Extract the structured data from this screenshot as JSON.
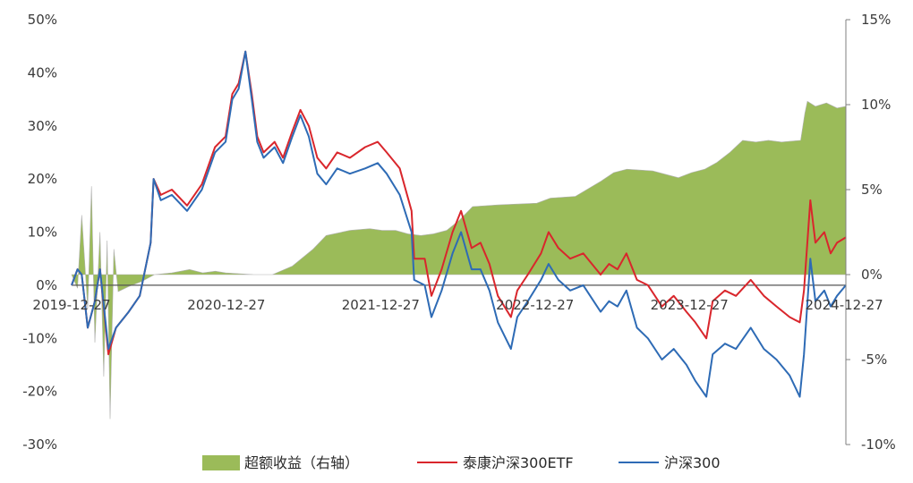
{
  "chart_data": {
    "type": "line",
    "x_type": "date",
    "x_range": [
      "2019-12-27",
      "2024-12-31"
    ],
    "x_tick_labels": [
      "2019-12-27",
      "2020-12-27",
      "2021-12-27",
      "2022-12-27",
      "2023-12-27",
      "2024-12-27"
    ],
    "y_left": {
      "ticks": [
        "50%",
        "40%",
        "30%",
        "20%",
        "10%",
        "0%",
        "-10%",
        "-20%",
        "-30%"
      ],
      "range": [
        -30,
        50
      ],
      "unit": "%"
    },
    "y_right": {
      "ticks": [
        "15%",
        "10%",
        "5%",
        "0%",
        "-5%",
        "-10%"
      ],
      "range": [
        -10,
        15
      ],
      "unit": "%"
    },
    "legend_position": "bottom",
    "grid": false,
    "legend": {
      "excess": "超额收益（右轴）",
      "etf": "泰康沪深300ETF",
      "index": "沪深300"
    },
    "colors": {
      "excess": "#9bbb59",
      "etf": "#d9262c",
      "index": "#2e6bb5",
      "axis": "#7f7f7f"
    },
    "series": [
      {
        "name": "泰康沪深300ETF",
        "axis": "left",
        "points": [
          [
            "2019-12-27",
            0
          ],
          [
            "2020-01-10",
            3
          ],
          [
            "2020-01-20",
            2
          ],
          [
            "2020-02-03",
            -8
          ],
          [
            "2020-02-20",
            -3
          ],
          [
            "2020-03-03",
            3
          ],
          [
            "2020-03-23",
            -13
          ],
          [
            "2020-04-10",
            -8
          ],
          [
            "2020-05-10",
            -5
          ],
          [
            "2020-06-05",
            -2
          ],
          [
            "2020-07-01",
            8
          ],
          [
            "2020-07-08",
            20
          ],
          [
            "2020-07-25",
            17
          ],
          [
            "2020-08-20",
            18
          ],
          [
            "2020-09-25",
            15
          ],
          [
            "2020-10-30",
            19
          ],
          [
            "2020-11-30",
            26
          ],
          [
            "2020-12-25",
            28
          ],
          [
            "2021-01-10",
            36
          ],
          [
            "2021-01-25",
            38
          ],
          [
            "2021-02-10",
            44
          ],
          [
            "2021-02-25",
            36
          ],
          [
            "2021-03-10",
            28
          ],
          [
            "2021-03-25",
            25
          ],
          [
            "2021-04-20",
            27
          ],
          [
            "2021-05-10",
            24
          ],
          [
            "2021-06-01",
            29
          ],
          [
            "2021-06-20",
            33
          ],
          [
            "2021-07-10",
            30
          ],
          [
            "2021-07-30",
            24
          ],
          [
            "2021-08-20",
            22
          ],
          [
            "2021-09-15",
            25
          ],
          [
            "2021-10-15",
            24
          ],
          [
            "2021-11-20",
            26
          ],
          [
            "2021-12-20",
            27
          ],
          [
            "2022-01-10",
            25
          ],
          [
            "2022-02-10",
            22
          ],
          [
            "2022-03-10",
            14
          ],
          [
            "2022-03-16",
            5
          ],
          [
            "2022-04-10",
            5
          ],
          [
            "2022-04-26",
            -2
          ],
          [
            "2022-05-20",
            3
          ],
          [
            "2022-06-15",
            10
          ],
          [
            "2022-07-05",
            14
          ],
          [
            "2022-07-30",
            7
          ],
          [
            "2022-08-20",
            8
          ],
          [
            "2022-09-10",
            4
          ],
          [
            "2022-09-30",
            -2
          ],
          [
            "2022-10-31",
            -6
          ],
          [
            "2022-11-15",
            -1
          ],
          [
            "2022-12-10",
            2
          ],
          [
            "2023-01-10",
            6
          ],
          [
            "2023-01-28",
            10
          ],
          [
            "2023-02-20",
            7
          ],
          [
            "2023-03-20",
            5
          ],
          [
            "2023-04-20",
            6
          ],
          [
            "2023-05-31",
            2
          ],
          [
            "2023-06-20",
            4
          ],
          [
            "2023-07-10",
            3
          ],
          [
            "2023-07-31",
            6
          ],
          [
            "2023-08-25",
            1
          ],
          [
            "2023-09-20",
            0
          ],
          [
            "2023-10-23",
            -4
          ],
          [
            "2023-11-20",
            -2
          ],
          [
            "2023-12-20",
            -5
          ],
          [
            "2024-01-10",
            -7
          ],
          [
            "2024-02-05",
            -10
          ],
          [
            "2024-02-20",
            -3
          ],
          [
            "2024-03-20",
            -1
          ],
          [
            "2024-04-15",
            -2
          ],
          [
            "2024-05-20",
            1
          ],
          [
            "2024-06-20",
            -2
          ],
          [
            "2024-07-20",
            -4
          ],
          [
            "2024-08-20",
            -6
          ],
          [
            "2024-09-13",
            -7
          ],
          [
            "2024-09-23",
            -1
          ],
          [
            "2024-10-08",
            16
          ],
          [
            "2024-10-20",
            8
          ],
          [
            "2024-11-10",
            10
          ],
          [
            "2024-11-25",
            6
          ],
          [
            "2024-12-10",
            8
          ],
          [
            "2024-12-31",
            9
          ]
        ]
      },
      {
        "name": "沪深300",
        "axis": "left",
        "points": [
          [
            "2019-12-27",
            0
          ],
          [
            "2020-01-10",
            3
          ],
          [
            "2020-01-20",
            2
          ],
          [
            "2020-02-03",
            -8
          ],
          [
            "2020-02-20",
            -3
          ],
          [
            "2020-03-03",
            3
          ],
          [
            "2020-03-23",
            -12
          ],
          [
            "2020-04-10",
            -8
          ],
          [
            "2020-05-10",
            -5
          ],
          [
            "2020-06-05",
            -2
          ],
          [
            "2020-07-01",
            8
          ],
          [
            "2020-07-08",
            20
          ],
          [
            "2020-07-25",
            16
          ],
          [
            "2020-08-20",
            17
          ],
          [
            "2020-09-25",
            14
          ],
          [
            "2020-10-30",
            18
          ],
          [
            "2020-11-30",
            25
          ],
          [
            "2020-12-25",
            27
          ],
          [
            "2021-01-10",
            35
          ],
          [
            "2021-01-25",
            37
          ],
          [
            "2021-02-10",
            44
          ],
          [
            "2021-02-25",
            35
          ],
          [
            "2021-03-10",
            27
          ],
          [
            "2021-03-25",
            24
          ],
          [
            "2021-04-20",
            26
          ],
          [
            "2021-05-10",
            23
          ],
          [
            "2021-06-01",
            28
          ],
          [
            "2021-06-20",
            32
          ],
          [
            "2021-07-10",
            28
          ],
          [
            "2021-07-30",
            21
          ],
          [
            "2021-08-20",
            19
          ],
          [
            "2021-09-15",
            22
          ],
          [
            "2021-10-15",
            21
          ],
          [
            "2021-11-20",
            22
          ],
          [
            "2021-12-20",
            23
          ],
          [
            "2022-01-10",
            21
          ],
          [
            "2022-02-10",
            17
          ],
          [
            "2022-03-10",
            10
          ],
          [
            "2022-03-16",
            1
          ],
          [
            "2022-04-10",
            0
          ],
          [
            "2022-04-26",
            -6
          ],
          [
            "2022-05-20",
            -1
          ],
          [
            "2022-06-15",
            6
          ],
          [
            "2022-07-05",
            10
          ],
          [
            "2022-07-30",
            3
          ],
          [
            "2022-08-20",
            3
          ],
          [
            "2022-09-10",
            -1
          ],
          [
            "2022-09-30",
            -7
          ],
          [
            "2022-10-31",
            -12
          ],
          [
            "2022-11-15",
            -6
          ],
          [
            "2022-12-10",
            -3
          ],
          [
            "2023-01-10",
            1
          ],
          [
            "2023-01-28",
            4
          ],
          [
            "2023-02-20",
            1
          ],
          [
            "2023-03-20",
            -1
          ],
          [
            "2023-04-20",
            0
          ],
          [
            "2023-05-31",
            -5
          ],
          [
            "2023-06-20",
            -3
          ],
          [
            "2023-07-10",
            -4
          ],
          [
            "2023-07-31",
            -1
          ],
          [
            "2023-08-25",
            -8
          ],
          [
            "2023-09-20",
            -10
          ],
          [
            "2023-10-23",
            -14
          ],
          [
            "2023-11-20",
            -12
          ],
          [
            "2023-12-20",
            -15
          ],
          [
            "2024-01-10",
            -18
          ],
          [
            "2024-02-05",
            -21
          ],
          [
            "2024-02-20",
            -13
          ],
          [
            "2024-03-20",
            -11
          ],
          [
            "2024-04-15",
            -12
          ],
          [
            "2024-05-20",
            -8
          ],
          [
            "2024-06-20",
            -12
          ],
          [
            "2024-07-20",
            -14
          ],
          [
            "2024-08-20",
            -17
          ],
          [
            "2024-09-13",
            -21
          ],
          [
            "2024-09-23",
            -13
          ],
          [
            "2024-10-08",
            5
          ],
          [
            "2024-10-20",
            -3
          ],
          [
            "2024-11-10",
            -1
          ],
          [
            "2024-11-25",
            -4
          ],
          [
            "2024-12-10",
            -2
          ],
          [
            "2024-12-31",
            0
          ]
        ]
      },
      {
        "name": "超额收益（右轴）",
        "axis": "right",
        "style": "area",
        "points": [
          [
            "2019-12-27",
            0
          ],
          [
            "2020-01-10",
            -0.8
          ],
          [
            "2020-01-20",
            3.5
          ],
          [
            "2020-02-03",
            -2
          ],
          [
            "2020-02-12",
            5.2
          ],
          [
            "2020-02-20",
            -4
          ],
          [
            "2020-03-03",
            2.5
          ],
          [
            "2020-03-12",
            -6
          ],
          [
            "2020-03-20",
            2
          ],
          [
            "2020-03-27",
            -8.5
          ],
          [
            "2020-04-05",
            1.5
          ],
          [
            "2020-04-15",
            -1
          ],
          [
            "2020-05-10",
            -0.7
          ],
          [
            "2020-06-10",
            -0.4
          ],
          [
            "2020-07-10",
            0
          ],
          [
            "2020-08-20",
            0.1
          ],
          [
            "2020-10-01",
            0.3
          ],
          [
            "2020-11-01",
            0.1
          ],
          [
            "2020-12-01",
            0.2
          ],
          [
            "2020-12-25",
            0.1
          ],
          [
            "2021-03-01",
            0
          ],
          [
            "2021-04-15",
            0
          ],
          [
            "2021-06-01",
            0.5
          ],
          [
            "2021-07-20",
            1.5
          ],
          [
            "2021-08-20",
            2.3
          ],
          [
            "2021-10-15",
            2.6
          ],
          [
            "2021-12-01",
            2.7
          ],
          [
            "2021-12-30",
            2.6
          ],
          [
            "2022-01-31",
            2.6
          ],
          [
            "2022-03-01",
            2.4
          ],
          [
            "2022-04-01",
            2.3
          ],
          [
            "2022-05-01",
            2.4
          ],
          [
            "2022-06-01",
            2.6
          ],
          [
            "2022-07-01",
            3.2
          ],
          [
            "2022-08-01",
            4.0
          ],
          [
            "2022-10-01",
            4.1
          ],
          [
            "2022-12-31",
            4.2
          ],
          [
            "2023-02-01",
            4.5
          ],
          [
            "2023-04-01",
            4.6
          ],
          [
            "2023-06-01",
            5.5
          ],
          [
            "2023-07-01",
            6.0
          ],
          [
            "2023-08-01",
            6.2
          ],
          [
            "2023-10-01",
            6.1
          ],
          [
            "2023-12-01",
            5.7
          ],
          [
            "2024-01-01",
            6.0
          ],
          [
            "2024-02-01",
            6.2
          ],
          [
            "2024-03-01",
            6.6
          ],
          [
            "2024-04-01",
            7.2
          ],
          [
            "2024-05-01",
            7.9
          ],
          [
            "2024-06-01",
            7.8
          ],
          [
            "2024-07-01",
            7.9
          ],
          [
            "2024-08-01",
            7.8
          ],
          [
            "2024-09-15",
            7.9
          ],
          [
            "2024-09-25",
            9.5
          ],
          [
            "2024-10-01",
            10.2
          ],
          [
            "2024-10-20",
            9.9
          ],
          [
            "2024-11-15",
            10.1
          ],
          [
            "2024-12-10",
            9.8
          ],
          [
            "2024-12-31",
            9.9
          ]
        ]
      }
    ]
  }
}
